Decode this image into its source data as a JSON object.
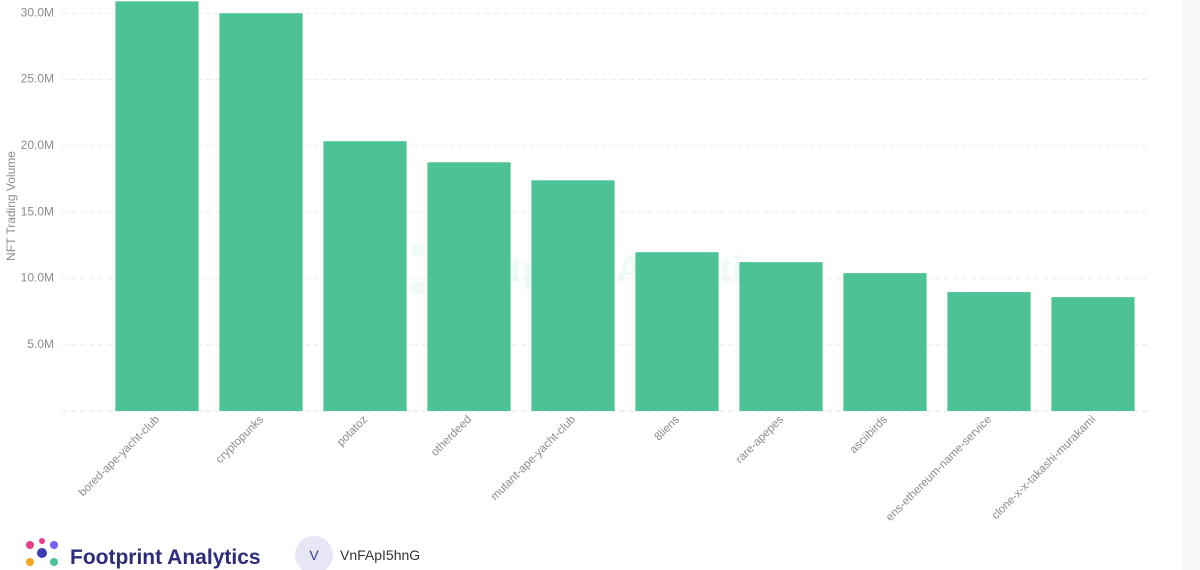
{
  "chart_data": {
    "type": "bar",
    "y_label": "NFT Trading Volume",
    "watermark": "Footprint Analytics",
    "categories": [
      "bored-ape-yacht-club",
      "cryptopunks",
      "potatoz",
      "otherdeed",
      "mutant-ape-yacht-club",
      "8liens",
      "rare-apepes",
      "asciibirds",
      "ens-ethereum-name-service",
      "clone-x-x-takashi-murakami"
    ],
    "values": [
      30900000,
      30000000,
      20350000,
      18760000,
      17400000,
      11980000,
      11230000,
      10400000,
      8970000,
      8590000
    ],
    "color": "#4cc395",
    "ylim": [
      0,
      31000000
    ],
    "yticks": [
      {
        "value": 5000000,
        "label": "5.0M"
      },
      {
        "value": 10000000,
        "label": "10.0M"
      },
      {
        "value": 15000000,
        "label": "15.0M"
      },
      {
        "value": 20000000,
        "label": "20.0M"
      },
      {
        "value": 25000000,
        "label": "25.0M"
      },
      {
        "value": 30000000,
        "label": "30.0M"
      }
    ],
    "grid": true
  },
  "footer": {
    "brand": "Footprint Analytics",
    "avatar": "V",
    "user": "VnFApI5hnG"
  }
}
